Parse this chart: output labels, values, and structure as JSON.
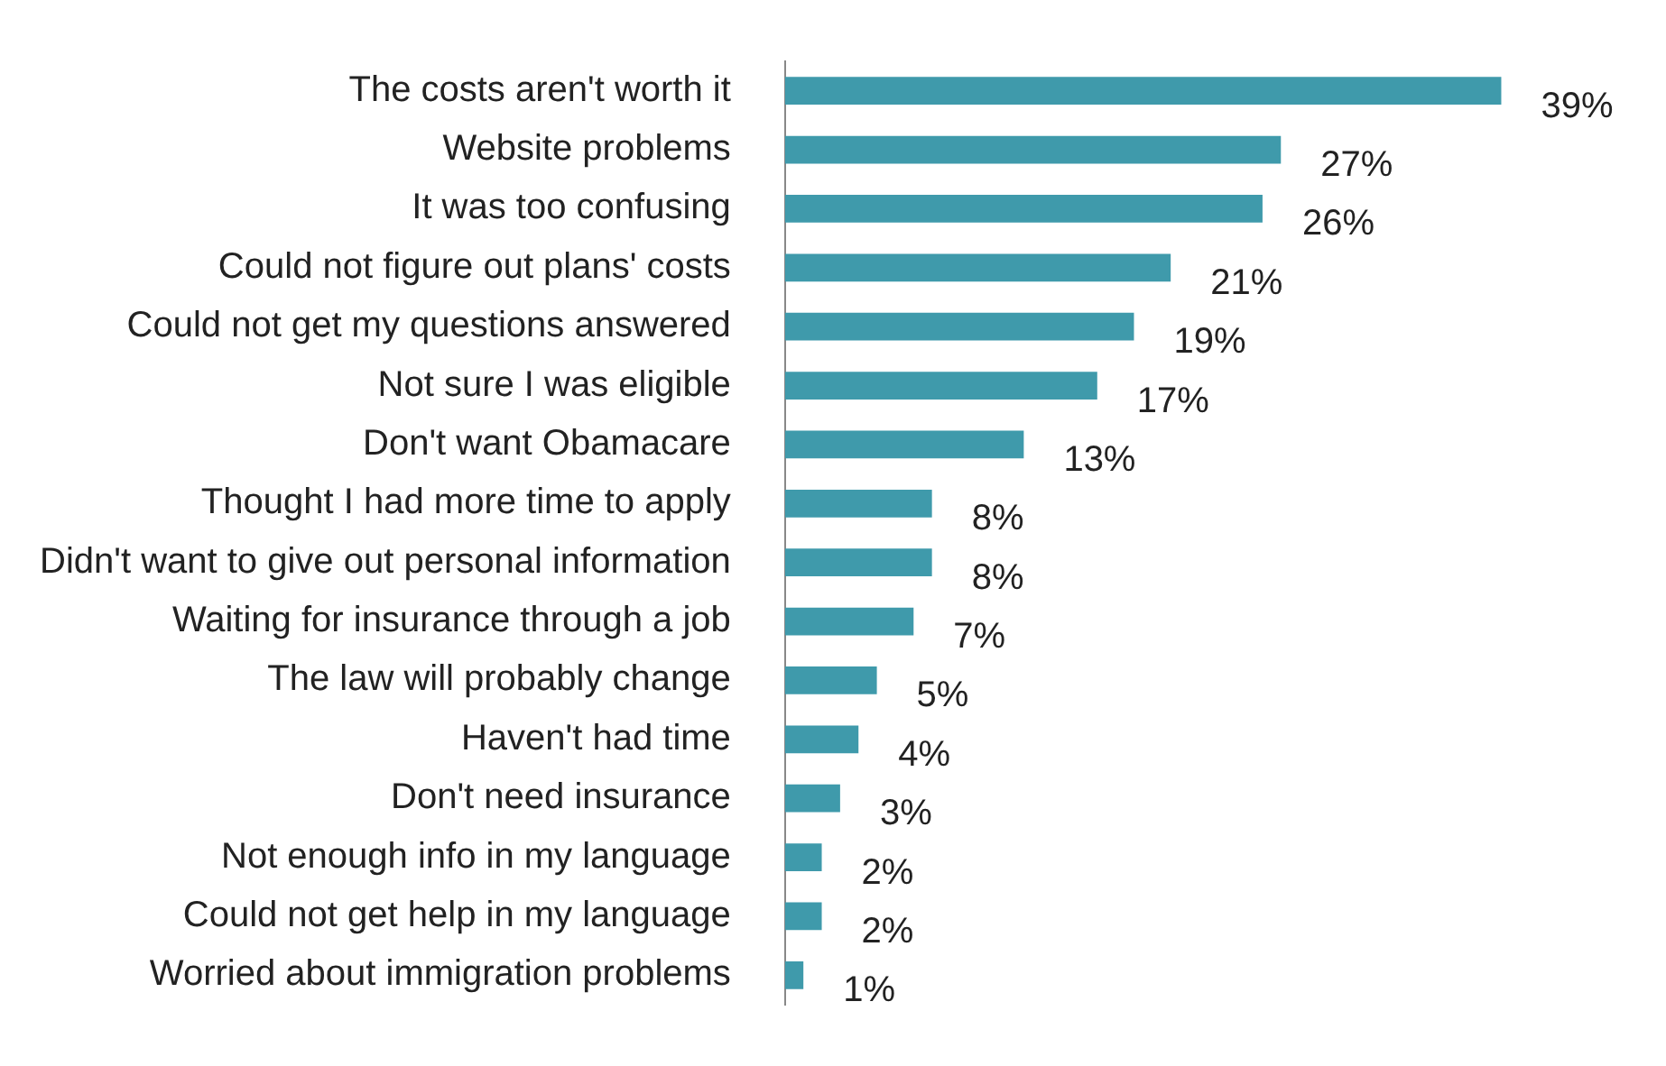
{
  "chart_data": {
    "type": "bar",
    "orientation": "horizontal",
    "color": "#3f9aab",
    "categories": [
      "The costs aren't worth it",
      "Website problems",
      "It was too confusing",
      "Could not figure out plans' costs",
      "Could not get my questions answered",
      "Not sure I was eligible",
      "Don't want Obamacare",
      "Thought I had more time to apply",
      "Didn't want to give out personal information",
      "Waiting for insurance through a job",
      "The law will probably change",
      "Haven't had time",
      "Don't need insurance",
      "Not enough info in my language",
      "Could not get help in my language",
      "Worried about immigration problems"
    ],
    "values": [
      39,
      27,
      26,
      21,
      19,
      17,
      13,
      8,
      8,
      7,
      5,
      4,
      3,
      2,
      2,
      1
    ],
    "value_labels": [
      "39%",
      "27%",
      "26%",
      "21%",
      "19%",
      "17%",
      "13%",
      "8%",
      "8%",
      "7%",
      "5%",
      "4%",
      "3%",
      "2%",
      "2%",
      "1%"
    ],
    "legend": false
  }
}
